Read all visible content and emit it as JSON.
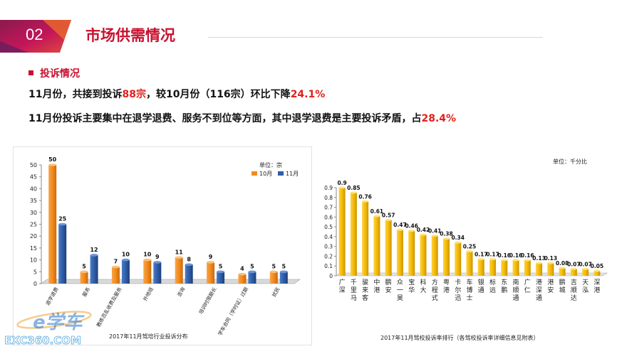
{
  "header": {
    "section_number": "02",
    "section_title": "市场供需情况"
  },
  "summary": {
    "subhead": "投诉情况",
    "line1_a": "11月份，共接到投诉",
    "line1_b": "88宗",
    "line1_c": "，较10月份（116宗）环比下降",
    "line1_d": "24.1%",
    "line2_a": "11月份投诉主要集中在退学退费、服务不到位等方面，其中退学退费是主要投诉矛盾，占",
    "line2_b": "28.4%"
  },
  "watermark": {
    "logo_text": "e学车",
    "site_text": "EXC360.COM"
  },
  "colors": {
    "accent_red": "#c8102e",
    "highlight_red": "#e0201c",
    "oct": "#f28a1e",
    "nov": "#2f5ea8",
    "gold": "#f2b705"
  },
  "chart_data": [
    {
      "type": "bar",
      "title": "2017年11月驾培行业投诉分布",
      "unit_label": "单位：宗",
      "categories": [
        "退学退费",
        "服务",
        "教练员乱收费及服务",
        "外地班",
        "咨询",
        "培训时限期长",
        "学车合同（学时证）过期",
        "扰民"
      ],
      "series": [
        {
          "name": "10月",
          "values": [
            50,
            5,
            7,
            10,
            11,
            9,
            4,
            5
          ]
        },
        {
          "name": "11月",
          "values": [
            25,
            12,
            10,
            9,
            8,
            5,
            5,
            5
          ]
        }
      ],
      "ylim": [
        0,
        50
      ],
      "yticks": [
        0,
        5,
        10,
        15,
        20,
        25,
        30,
        35,
        40,
        45,
        50
      ],
      "legend": "top-right",
      "grid": false
    },
    {
      "type": "bar",
      "title": "2017年11月驾校投诉率排行（各驾校投诉率详细信息见附表）",
      "unit_label": "单位：千分比",
      "categories": [
        "广深",
        "千里马",
        "骏来客",
        "中港",
        "鹏安",
        "众一昊",
        "宝华",
        "科大",
        "方程式",
        "粤港",
        "卡尔迅",
        "车博士",
        "银通",
        "标远",
        "东鹏",
        "南顺通",
        "广仁",
        "港深通",
        "港安",
        "鹏城",
        "吉顺达",
        "天泓",
        "深港"
      ],
      "values": [
        0.9,
        0.85,
        0.76,
        0.61,
        0.57,
        0.47,
        0.46,
        0.42,
        0.41,
        0.38,
        0.34,
        0.25,
        0.17,
        0.17,
        0.16,
        0.16,
        0.16,
        0.13,
        0.13,
        0.08,
        0.07,
        0.07,
        0.05
      ],
      "ylim": [
        0,
        0.9
      ],
      "yticks": [
        0,
        0.1,
        0.2,
        0.3,
        0.4,
        0.5,
        0.6,
        0.7,
        0.8,
        0.9
      ],
      "grid": false
    }
  ]
}
